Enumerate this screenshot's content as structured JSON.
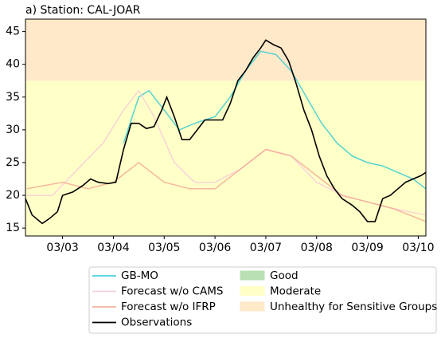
{
  "chart_data": {
    "type": "line",
    "title": "a) Station: CAL-JOAR",
    "xlim": [
      2.27,
      10.15
    ],
    "ylim": [
      13.8,
      46.9
    ],
    "xticks": [
      {
        "value": 3,
        "label": "03/03"
      },
      {
        "value": 4,
        "label": "03/04"
      },
      {
        "value": 5,
        "label": "03/05"
      },
      {
        "value": 6,
        "label": "03/06"
      },
      {
        "value": 7,
        "label": "03/07"
      },
      {
        "value": 8,
        "label": "03/08"
      },
      {
        "value": 9,
        "label": "03/09"
      },
      {
        "value": 10,
        "label": "03/10"
      }
    ],
    "yticks": [
      15,
      20,
      25,
      30,
      35,
      40,
      45
    ],
    "bands": [
      {
        "name": "Good",
        "color": "#b9dfb4",
        "range": [
          0,
          12
        ]
      },
      {
        "name": "Moderate",
        "color": "#ffffc8",
        "range": [
          12,
          37.5
        ]
      },
      {
        "name": "Unhealthy for Sensitive Groups",
        "color": "#ffe9c8",
        "range": [
          37.5,
          55
        ]
      }
    ],
    "series": [
      {
        "name": "GB-MO",
        "color": "#2ac8d4",
        "x": [
          4.2,
          4.5,
          4.7,
          5.0,
          5.3,
          5.6,
          6.0,
          6.3,
          6.6,
          6.9,
          7.2,
          7.5,
          7.8,
          8.1,
          8.4,
          8.7,
          9.0,
          9.3,
          9.6,
          9.9,
          10.15
        ],
        "values": [
          28,
          35,
          36,
          33,
          30,
          31,
          32,
          35,
          39,
          42,
          41.5,
          39,
          35,
          31,
          28,
          26,
          25,
          24.5,
          23.5,
          22.5,
          21
        ]
      },
      {
        "name": "Forecast w/o CAMS",
        "color": "#f8c8dc",
        "x": [
          2.3,
          2.8,
          3.3,
          3.8,
          4.2,
          4.5,
          4.8,
          5.2,
          5.6,
          6.0,
          6.5,
          7.0,
          7.5,
          8.0,
          8.5,
          9.0,
          9.5,
          10.15
        ],
        "values": [
          20,
          20,
          24,
          28,
          33,
          36,
          32,
          25,
          22,
          22,
          24,
          27,
          26,
          22,
          20,
          19,
          18,
          17
        ]
      },
      {
        "name": "Forecast w/o IFRP",
        "color": "#f4a592",
        "x": [
          2.3,
          3.0,
          3.5,
          4.0,
          4.5,
          5.0,
          5.5,
          6.0,
          6.5,
          7.0,
          7.5,
          8.0,
          8.5,
          9.0,
          9.5,
          10.15
        ],
        "values": [
          21,
          22,
          21,
          22,
          25,
          22,
          21,
          21,
          24,
          27,
          26,
          23,
          20,
          19,
          18,
          16
        ]
      },
      {
        "name": "Observations",
        "color": "#000000",
        "x": [
          2.27,
          2.4,
          2.6,
          2.75,
          2.9,
          3.0,
          3.2,
          3.4,
          3.55,
          3.7,
          3.9,
          4.05,
          4.2,
          4.35,
          4.5,
          4.65,
          4.8,
          4.95,
          5.05,
          5.2,
          5.35,
          5.5,
          5.65,
          5.8,
          6.0,
          6.15,
          6.3,
          6.45,
          6.6,
          6.75,
          6.9,
          7.0,
          7.15,
          7.3,
          7.45,
          7.6,
          7.75,
          7.9,
          8.05,
          8.2,
          8.35,
          8.5,
          8.7,
          8.85,
          9.0,
          9.15,
          9.3,
          9.45,
          9.6,
          9.75,
          9.9,
          10.05,
          10.15
        ],
        "values": [
          19.5,
          17,
          15.7,
          16.5,
          17.5,
          20,
          20.5,
          21.5,
          22.5,
          22,
          21.8,
          22,
          27,
          31,
          31,
          30.2,
          30.5,
          33,
          35,
          32,
          28.5,
          28.5,
          30,
          31.5,
          31.5,
          31.5,
          34,
          37.5,
          39,
          41,
          42.5,
          43.7,
          43,
          42.5,
          40.5,
          37,
          33,
          30,
          26,
          23,
          21,
          19.5,
          18.5,
          17.5,
          16,
          16,
          19.5,
          20,
          21,
          22,
          22.5,
          23,
          23.5
        ]
      }
    ]
  }
}
